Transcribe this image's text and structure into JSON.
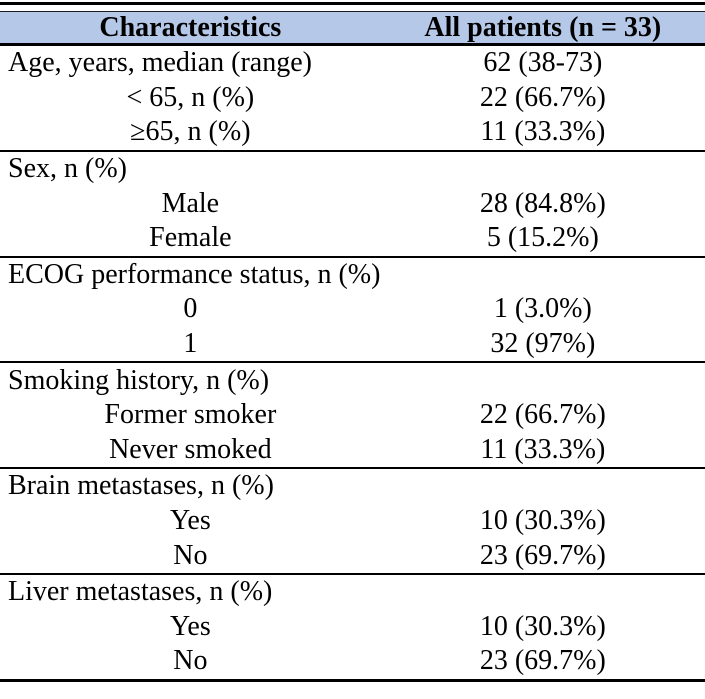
{
  "table": {
    "title_row": {
      "characteristics_label": "Characteristics",
      "patients_label": "All patients (n = 33)"
    },
    "header_bg_color": "#b6c8e8",
    "rule_color": "#000000",
    "sections": [
      {
        "rows": [
          {
            "label": "Age, years, median (range)",
            "value": "62 (38-73)",
            "indent": false
          },
          {
            "label": "< 65, n (%)",
            "value": "22 (66.7%)",
            "indent": true
          },
          {
            "label": "≥65, n (%)",
            "value": "11 (33.3%)",
            "indent": true
          }
        ]
      },
      {
        "rows": [
          {
            "label": "Sex, n (%)",
            "value": "",
            "indent": false
          },
          {
            "label": "Male",
            "value": "28 (84.8%)",
            "indent": true
          },
          {
            "label": "Female",
            "value": "5 (15.2%)",
            "indent": true
          }
        ]
      },
      {
        "rows": [
          {
            "label": "ECOG performance status, n (%)",
            "value": "",
            "indent": false
          },
          {
            "label": "0",
            "value": "1 (3.0%)",
            "indent": true
          },
          {
            "label": "1",
            "value": "32 (97%)",
            "indent": true
          }
        ]
      },
      {
        "rows": [
          {
            "label": "Smoking history, n (%)",
            "value": "",
            "indent": false
          },
          {
            "label": "Former smoker",
            "value": "22 (66.7%)",
            "indent": true
          },
          {
            "label": "Never smoked",
            "value": "11 (33.3%)",
            "indent": true
          }
        ]
      },
      {
        "rows": [
          {
            "label": "Brain metastases, n (%)",
            "value": "",
            "indent": false
          },
          {
            "label": "Yes",
            "value": "10 (30.3%)",
            "indent": true
          },
          {
            "label": "No",
            "value": "23 (69.7%)",
            "indent": true
          }
        ]
      },
      {
        "rows": [
          {
            "label": "Liver metastases, n (%)",
            "value": "",
            "indent": false
          },
          {
            "label": "Yes",
            "value": "10 (30.3%)",
            "indent": true
          },
          {
            "label": "No",
            "value": "23 (69.7%)",
            "indent": true
          }
        ]
      }
    ]
  }
}
